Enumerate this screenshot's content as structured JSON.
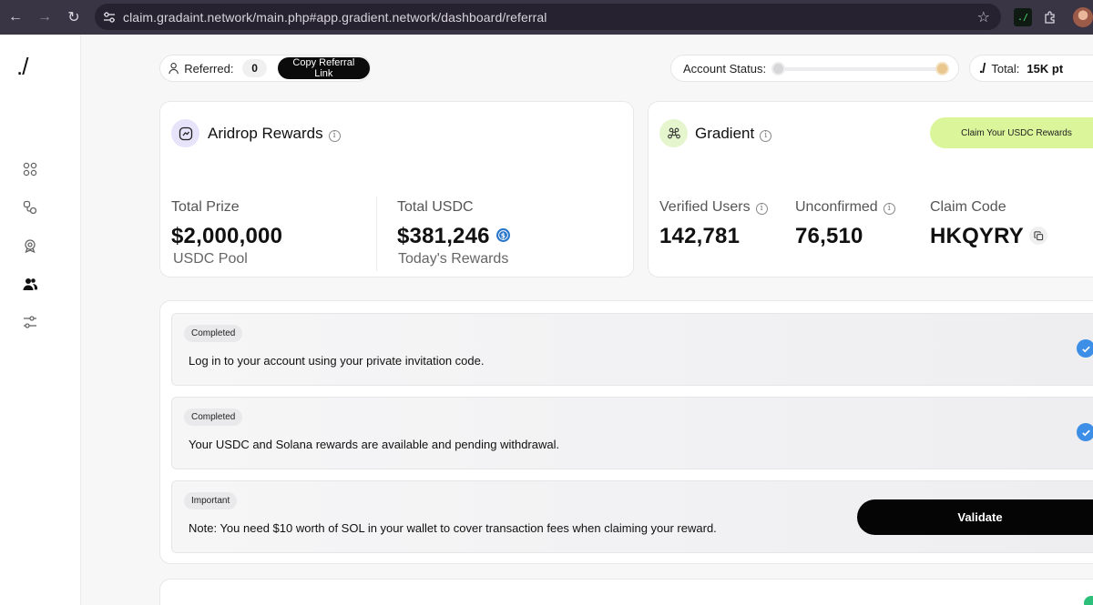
{
  "browser": {
    "url": "claim.gradaint.network/main.php#app.gradient.network/dashboard/referral",
    "extension_label": "./"
  },
  "sidebar": {
    "logo": "./",
    "items": [
      {
        "icon": "dashboard-grid-icon"
      },
      {
        "icon": "nodes-icon"
      },
      {
        "icon": "rewards-badge-icon"
      },
      {
        "icon": "referral-users-icon",
        "active": true
      },
      {
        "icon": "settings-sliders-icon"
      }
    ]
  },
  "topbar": {
    "referred_label": "Referred:",
    "referred_count": "0",
    "copy_link_label": "Copy Referral Link",
    "account_status_label": "Account Status:",
    "total_mark": "./",
    "total_label": "Total:",
    "total_value": "15K pt"
  },
  "airdrop": {
    "title": "Aridrop Rewards",
    "total_prize_label": "Total Prize",
    "total_prize_value": "$2,000,000",
    "total_prize_sub": "USDC Pool",
    "total_usdc_label": "Total USDC",
    "total_usdc_value": "$381,246",
    "total_usdc_sub": "Today's Rewards"
  },
  "gradient": {
    "title": "Gradient",
    "claim_button": "Claim Your USDC Rewards",
    "verified_label": "Verified Users",
    "verified_value": "142,781",
    "unconfirmed_label": "Unconfirmed",
    "unconfirmed_value": "76,510",
    "claim_code_label": "Claim Code",
    "claim_code_value": "HKQYRY"
  },
  "tasks": [
    {
      "tag": "Completed",
      "text": "Log in to your account using your private invitation code."
    },
    {
      "tag": "Completed",
      "text": "Your USDC and Solana rewards are available and pending withdrawal."
    },
    {
      "tag": "Important",
      "text": "Note: You need $10 worth of SOL in your wallet to cover transaction fees when claiming your reward.",
      "button": "Validate"
    }
  ],
  "colors": {
    "accent_green": "#dbf59a",
    "check_blue": "#3d8ee6",
    "usdc_blue": "#2775ca"
  }
}
